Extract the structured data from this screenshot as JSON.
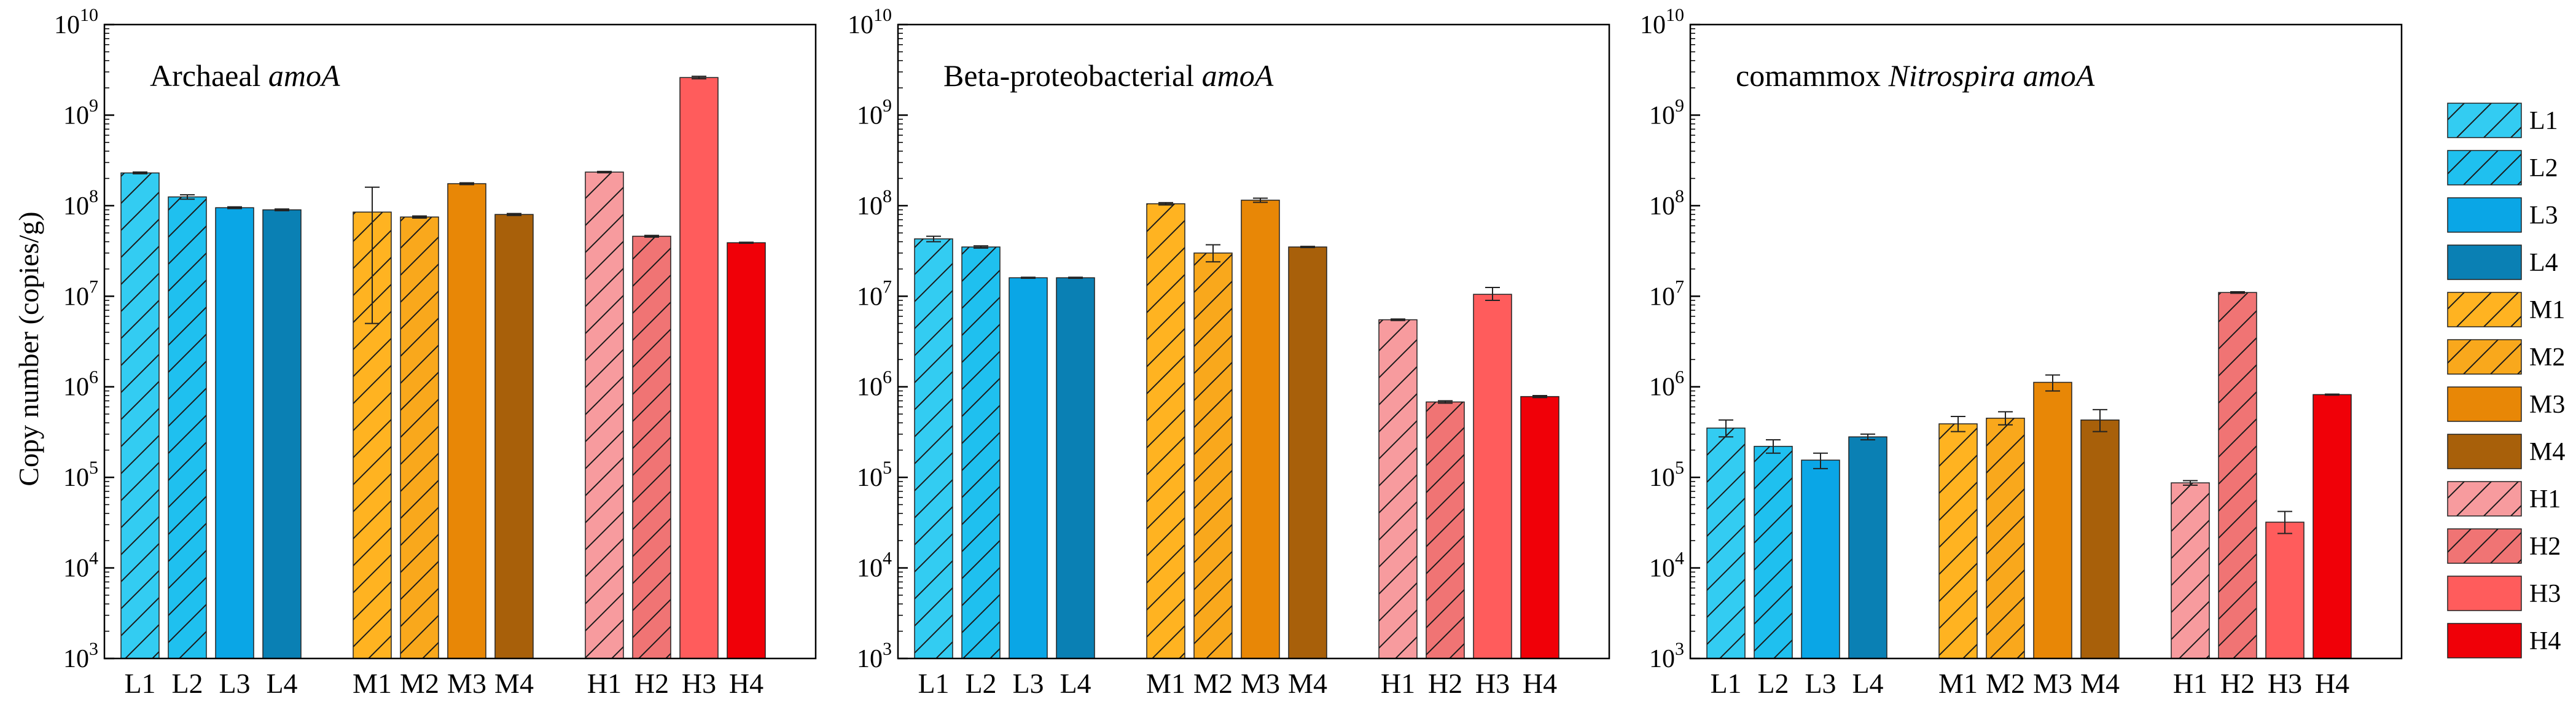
{
  "figure": {
    "ylabel": "Copy number (copies/g)"
  },
  "legend": {
    "placement": "right",
    "items": [
      "L1",
      "L2",
      "L3",
      "L4",
      "M1",
      "M2",
      "M3",
      "M4",
      "H1",
      "H2",
      "H3",
      "H4"
    ]
  },
  "series_styles": [
    {
      "name": "L1",
      "color": "#33ccf2",
      "hatch": true
    },
    {
      "name": "L2",
      "color": "#1fc0ef",
      "hatch": true
    },
    {
      "name": "L3",
      "color": "#0aa6e6",
      "hatch": false
    },
    {
      "name": "L4",
      "color": "#0a80b4",
      "hatch": false
    },
    {
      "name": "M1",
      "color": "#ffb321",
      "hatch": true
    },
    {
      "name": "M2",
      "color": "#f9a81c",
      "hatch": true
    },
    {
      "name": "M3",
      "color": "#e88706",
      "hatch": false
    },
    {
      "name": "M4",
      "color": "#a8600a",
      "hatch": false
    },
    {
      "name": "H1",
      "color": "#f79b9e",
      "hatch": true
    },
    {
      "name": "H2",
      "color": "#f07474",
      "hatch": true
    },
    {
      "name": "H3",
      "color": "#ff5c5c",
      "hatch": false
    },
    {
      "name": "H4",
      "color": "#f00008",
      "hatch": false
    }
  ],
  "chart_data": [
    {
      "type": "bar",
      "title_plain": "Archaeal ",
      "title_italic": "amoA",
      "title_italic2": "",
      "ylabel": "Copy number (copies/g)",
      "yscale": "log",
      "ylim": [
        1000,
        10000000000
      ],
      "yticks": [
        {
          "base": "10",
          "exp": "3"
        },
        {
          "base": "10",
          "exp": "4"
        },
        {
          "base": "10",
          "exp": "5"
        },
        {
          "base": "10",
          "exp": "6"
        },
        {
          "base": "10",
          "exp": "7"
        },
        {
          "base": "10",
          "exp": "8"
        },
        {
          "base": "10",
          "exp": "9"
        },
        {
          "base": "10",
          "exp": "10"
        }
      ],
      "categories": [
        "L1",
        "L2",
        "L3",
        "L4",
        "M1",
        "M2",
        "M3",
        "M4",
        "H1",
        "H2",
        "H3",
        "H4"
      ],
      "values": [
        230000000,
        125000000,
        95000000,
        90000000,
        85000000,
        75000000,
        175000000,
        80000000,
        235000000,
        46000000,
        2600000000,
        39000000
      ],
      "error_low": [
        225000000,
        118000000,
        93000000,
        88000000,
        5000000,
        73000000,
        171000000,
        78000000,
        231000000,
        45000000,
        2520000000,
        38500000
      ],
      "error_high": [
        235000000,
        132000000,
        97000000,
        92000000,
        160000000,
        77000000,
        179000000,
        82000000,
        239000000,
        47000000,
        2680000000,
        39500000
      ]
    },
    {
      "type": "bar",
      "title_plain": "Beta-proteobacterial ",
      "title_italic": "amoA",
      "title_italic2": "",
      "ylabel": "",
      "yscale": "log",
      "ylim": [
        1000,
        10000000000
      ],
      "yticks": [
        {
          "base": "10",
          "exp": "3"
        },
        {
          "base": "10",
          "exp": "4"
        },
        {
          "base": "10",
          "exp": "5"
        },
        {
          "base": "10",
          "exp": "6"
        },
        {
          "base": "10",
          "exp": "7"
        },
        {
          "base": "10",
          "exp": "8"
        },
        {
          "base": "10",
          "exp": "9"
        },
        {
          "base": "10",
          "exp": "10"
        }
      ],
      "categories": [
        "L1",
        "L2",
        "L3",
        "L4",
        "M1",
        "M2",
        "M3",
        "M4",
        "H1",
        "H2",
        "H3",
        "H4"
      ],
      "values": [
        43000000,
        35000000,
        16000000,
        16000000,
        105000000,
        30000000,
        115000000,
        35000000,
        5500000,
        680000,
        10500000,
        780000
      ],
      "error_low": [
        40000000,
        34000000,
        15800000,
        15800000,
        102000000,
        24000000,
        109000000,
        34500000,
        5400000,
        660000,
        9000000,
        760000
      ],
      "error_high": [
        46000000,
        36000000,
        16200000,
        16200000,
        108000000,
        37000000,
        121000000,
        35500000,
        5600000,
        700000,
        12500000,
        800000
      ]
    },
    {
      "type": "bar",
      "title_plain": "comammox ",
      "title_italic": "Nitrospira",
      "title_italic2": " amoA",
      "ylabel": "",
      "yscale": "log",
      "ylim": [
        1000,
        10000000000
      ],
      "yticks": [
        {
          "base": "10",
          "exp": "3"
        },
        {
          "base": "10",
          "exp": "4"
        },
        {
          "base": "10",
          "exp": "5"
        },
        {
          "base": "10",
          "exp": "6"
        },
        {
          "base": "10",
          "exp": "7"
        },
        {
          "base": "10",
          "exp": "8"
        },
        {
          "base": "10",
          "exp": "9"
        },
        {
          "base": "10",
          "exp": "10"
        }
      ],
      "categories": [
        "L1",
        "L2",
        "L3",
        "L4",
        "M1",
        "M2",
        "M3",
        "M4",
        "H1",
        "H2",
        "H3",
        "H4"
      ],
      "values": [
        350000,
        220000,
        155000,
        280000,
        390000,
        450000,
        1120000,
        430000,
        87000,
        11000000,
        32000,
        820000
      ],
      "error_low": [
        280000,
        185000,
        125000,
        260000,
        320000,
        380000,
        900000,
        320000,
        82000,
        10800000,
        24000,
        810000
      ],
      "error_high": [
        430000,
        260000,
        185000,
        300000,
        470000,
        530000,
        1350000,
        560000,
        92000,
        11200000,
        42000,
        830000
      ]
    }
  ]
}
